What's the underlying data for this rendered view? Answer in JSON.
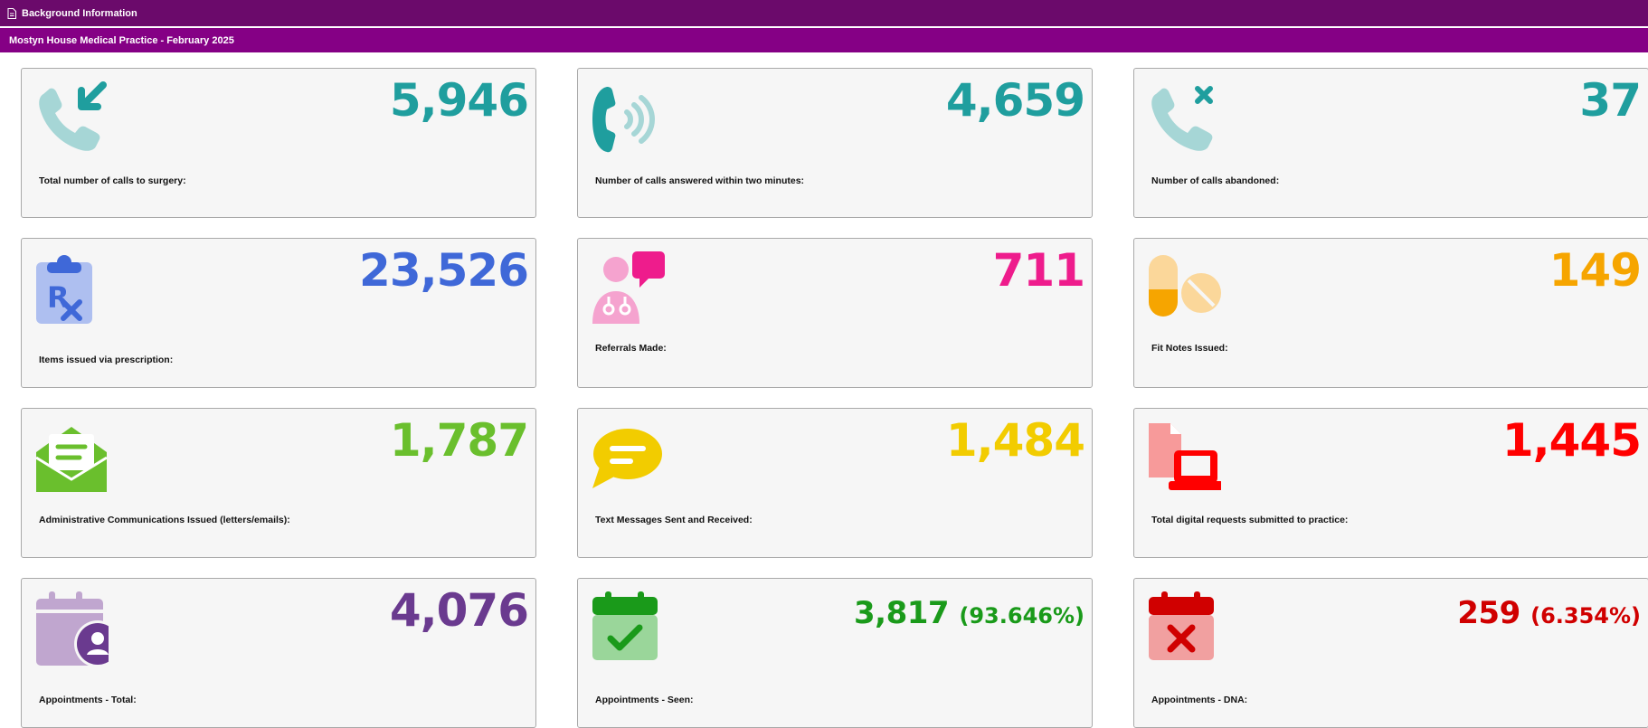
{
  "header": {
    "section_title": "Background Information",
    "subtitle": "Mostyn House Medical Practice - February 2025"
  },
  "cards": [
    {
      "icon": "phone-incoming-icon",
      "value": "5,946",
      "label": "Total number of calls to surgery:",
      "color": "#1f9e9e"
    },
    {
      "icon": "phone-ringing-icon",
      "value": "4,659",
      "label": "Number of calls answered within two minutes:",
      "color": "#1f9e9e"
    },
    {
      "icon": "phone-missed-icon",
      "value": "37",
      "label": "Number of calls abandoned:",
      "color": "#1f9e9e"
    },
    {
      "icon": "prescription-clipboard-icon",
      "value": "23,526",
      "label": "Items issued via prescription:",
      "color": "#3f68d8"
    },
    {
      "icon": "doctor-chat-icon",
      "value": "711",
      "label": "Referrals Made:",
      "color": "#ee1c8c"
    },
    {
      "icon": "pills-icon",
      "value": "149",
      "label": "Fit Notes Issued:",
      "color": "#f6a500"
    },
    {
      "icon": "envelope-open-icon",
      "value": "1,787",
      "label": "Administrative Communications Issued (letters/emails):",
      "color": "#6abf2d"
    },
    {
      "icon": "speech-bubble-icon",
      "value": "1,484",
      "label": "Text Messages Sent and Received:",
      "color": "#f2cc00"
    },
    {
      "icon": "laptop-document-icon",
      "value": "1,445",
      "label": "Total digital requests submitted to practice:",
      "color": "#ff0000"
    },
    {
      "icon": "calendar-user-icon",
      "value": "4,076",
      "label": "Appointments - Total:",
      "color": "#6a3a8f"
    },
    {
      "icon": "calendar-check-icon",
      "value": "3,817",
      "pct": "(93.646%)",
      "label": "Appointments - Seen:",
      "color": "#1a9a1a"
    },
    {
      "icon": "calendar-cross-icon",
      "value": "259",
      "pct": "(6.354%)",
      "label": "Appointments - DNA:",
      "color": "#d00000"
    }
  ]
}
